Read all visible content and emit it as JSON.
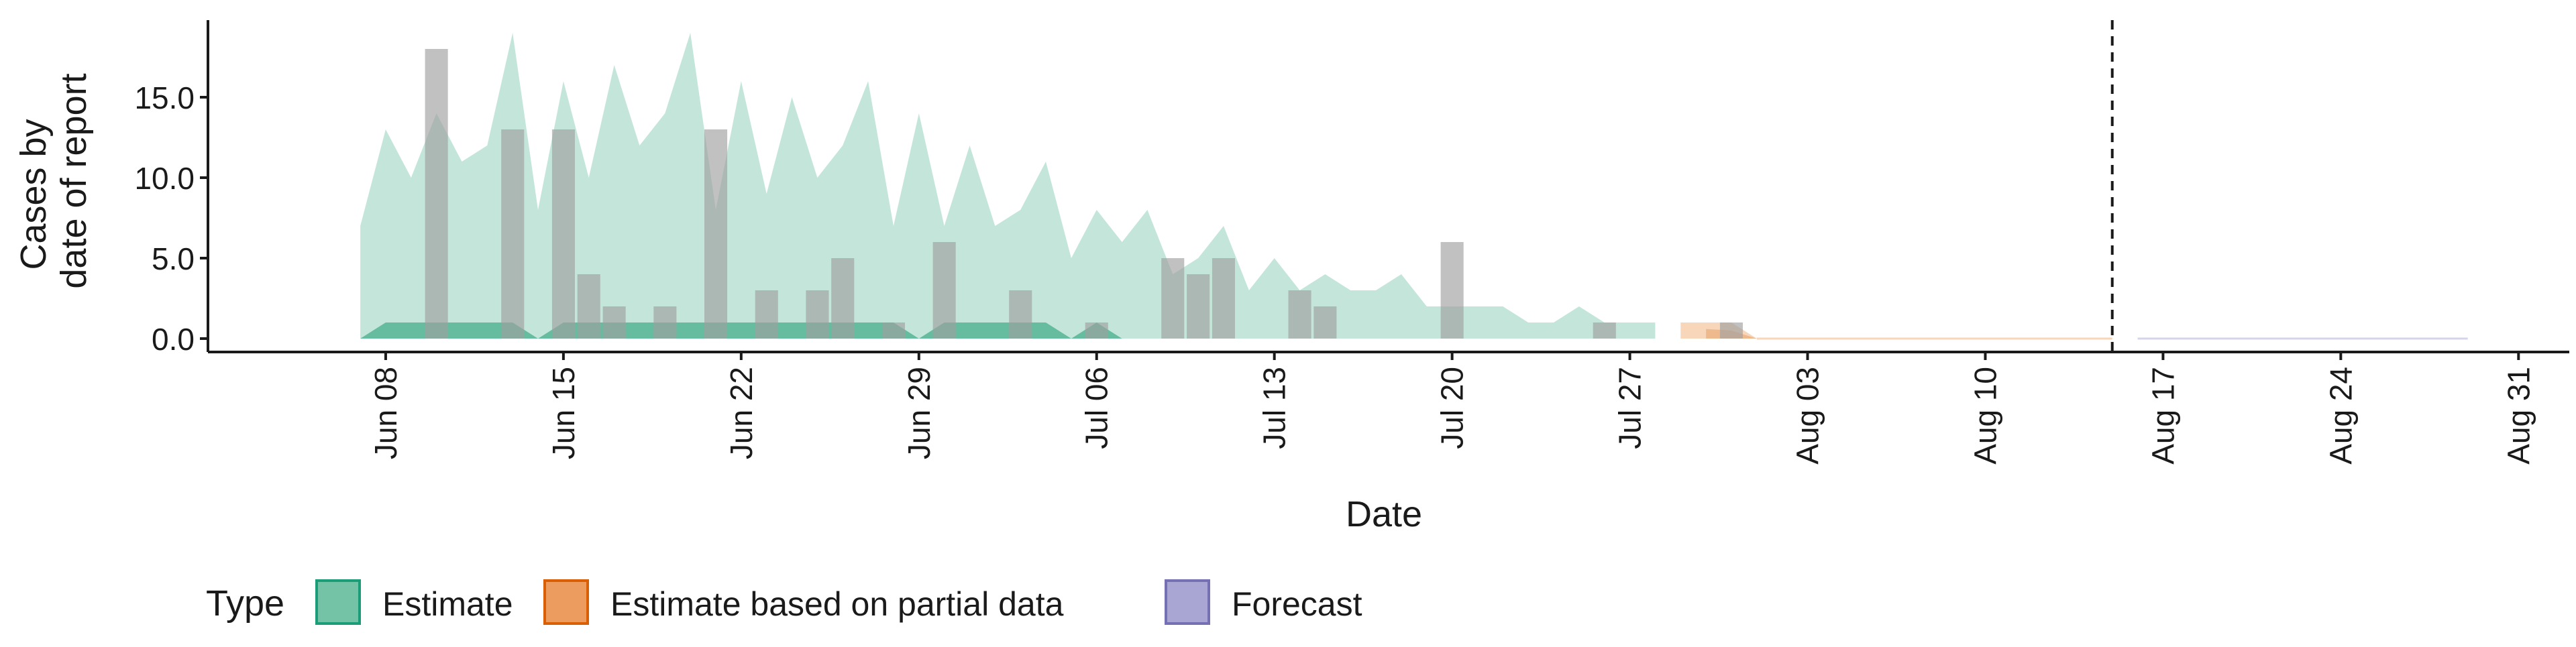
{
  "chart_data": {
    "type": "area",
    "xlabel": "Date",
    "ylabel_lines": [
      "Cases by",
      "date of report"
    ],
    "x_range": [
      "2021-06-01",
      "2021-09-02"
    ],
    "y_range": [
      0,
      20
    ],
    "y_ticks": [
      {
        "value": 0,
        "label": "0.0"
      },
      {
        "value": 5,
        "label": "5.0"
      },
      {
        "value": 10,
        "label": "10.0"
      },
      {
        "value": 15,
        "label": "15.0"
      }
    ],
    "x_ticks": [
      {
        "date": "2021-06-08",
        "label": "Jun 08"
      },
      {
        "date": "2021-06-15",
        "label": "Jun 15"
      },
      {
        "date": "2021-06-22",
        "label": "Jun 22"
      },
      {
        "date": "2021-06-29",
        "label": "Jun 29"
      },
      {
        "date": "2021-07-06",
        "label": "Jul 06"
      },
      {
        "date": "2021-07-13",
        "label": "Jul 13"
      },
      {
        "date": "2021-07-20",
        "label": "Jul 20"
      },
      {
        "date": "2021-07-27",
        "label": "Jul 27"
      },
      {
        "date": "2021-08-03",
        "label": "Aug 03"
      },
      {
        "date": "2021-08-10",
        "label": "Aug 10"
      },
      {
        "date": "2021-08-17",
        "label": "Aug 17"
      },
      {
        "date": "2021-08-24",
        "label": "Aug 24"
      },
      {
        "date": "2021-08-31",
        "label": "Aug 31"
      }
    ],
    "vline_date": "2021-08-15",
    "legend": {
      "title": "Type",
      "position": "bottom",
      "items": [
        {
          "label": "Estimate",
          "fill": "#74c3a7",
          "stroke": "#1b9e77"
        },
        {
          "label": "Estimate based on partial data",
          "fill": "#ec9c5e",
          "stroke": "#d95f02"
        },
        {
          "label": "Forecast",
          "fill": "#aaa6d3",
          "stroke": "#7570b3"
        }
      ]
    },
    "colors": {
      "estimate_outer": "#c4e6da",
      "estimate_inner": "#66bc9f",
      "partial_outer": "#f7d6ba",
      "partial_inner": "#efb98e",
      "forecast_outer": "#d6d4eb",
      "observed_bar": "#a0a0a0",
      "vline": "#1a1a1a",
      "axis": "#1a1a1a"
    },
    "series": [
      {
        "name": "Estimate",
        "outer_band": [
          [
            "2021-06-07",
            0,
            7
          ],
          [
            "2021-06-08",
            0,
            13
          ],
          [
            "2021-06-09",
            0,
            10
          ],
          [
            "2021-06-10",
            0,
            14
          ],
          [
            "2021-06-11",
            0,
            11
          ],
          [
            "2021-06-12",
            0,
            12
          ],
          [
            "2021-06-13",
            0,
            19
          ],
          [
            "2021-06-14",
            0,
            8
          ],
          [
            "2021-06-15",
            0,
            16
          ],
          [
            "2021-06-16",
            0,
            10
          ],
          [
            "2021-06-17",
            0,
            17
          ],
          [
            "2021-06-18",
            0,
            12
          ],
          [
            "2021-06-19",
            0,
            14
          ],
          [
            "2021-06-20",
            0,
            19
          ],
          [
            "2021-06-21",
            0,
            8
          ],
          [
            "2021-06-22",
            0,
            16
          ],
          [
            "2021-06-23",
            0,
            9
          ],
          [
            "2021-06-24",
            0,
            15
          ],
          [
            "2021-06-25",
            0,
            10
          ],
          [
            "2021-06-26",
            0,
            12
          ],
          [
            "2021-06-27",
            0,
            16
          ],
          [
            "2021-06-28",
            0,
            7
          ],
          [
            "2021-06-29",
            0,
            14
          ],
          [
            "2021-06-30",
            0,
            7
          ],
          [
            "2021-07-01",
            0,
            12
          ],
          [
            "2021-07-02",
            0,
            7
          ],
          [
            "2021-07-03",
            0,
            8
          ],
          [
            "2021-07-04",
            0,
            11
          ],
          [
            "2021-07-05",
            0,
            5
          ],
          [
            "2021-07-06",
            0,
            8
          ],
          [
            "2021-07-07",
            0,
            6
          ],
          [
            "2021-07-08",
            0,
            8
          ],
          [
            "2021-07-09",
            0,
            4
          ],
          [
            "2021-07-10",
            0,
            5
          ],
          [
            "2021-07-11",
            0,
            7
          ],
          [
            "2021-07-12",
            0,
            3
          ],
          [
            "2021-07-13",
            0,
            5
          ],
          [
            "2021-07-14",
            0,
            3
          ],
          [
            "2021-07-15",
            0,
            4
          ],
          [
            "2021-07-16",
            0,
            3
          ],
          [
            "2021-07-17",
            0,
            3
          ],
          [
            "2021-07-18",
            0,
            4
          ],
          [
            "2021-07-19",
            0,
            2
          ],
          [
            "2021-07-20",
            0,
            2
          ],
          [
            "2021-07-21",
            0,
            2
          ],
          [
            "2021-07-22",
            0,
            2
          ],
          [
            "2021-07-23",
            0,
            1
          ],
          [
            "2021-07-24",
            0,
            1
          ],
          [
            "2021-07-25",
            0,
            2
          ],
          [
            "2021-07-26",
            0,
            1
          ],
          [
            "2021-07-27",
            0,
            1
          ],
          [
            "2021-07-28",
            0,
            1
          ]
        ],
        "inner_band": [
          [
            "2021-06-07",
            0,
            0
          ],
          [
            "2021-06-08",
            0,
            1
          ],
          [
            "2021-06-13",
            0,
            1
          ],
          [
            "2021-06-14",
            0,
            0
          ],
          [
            "2021-06-15",
            0,
            1
          ],
          [
            "2021-06-28",
            0,
            1
          ],
          [
            "2021-06-29",
            0,
            0
          ],
          [
            "2021-06-30",
            0,
            1
          ],
          [
            "2021-07-03",
            0,
            1
          ],
          [
            "2021-07-04",
            0,
            1
          ],
          [
            "2021-07-05",
            0,
            0
          ],
          [
            "2021-07-06",
            0,
            1
          ],
          [
            "2021-07-07",
            0,
            0
          ],
          [
            "2021-07-28",
            0,
            0
          ]
        ]
      },
      {
        "name": "Estimate based on partial data",
        "outer_band": [
          [
            "2021-07-29",
            0,
            1
          ],
          [
            "2021-07-30",
            0,
            1
          ],
          [
            "2021-07-31",
            0,
            1
          ],
          [
            "2021-08-01",
            0,
            0
          ],
          [
            "2021-08-15",
            0,
            0
          ]
        ],
        "inner_band": [
          [
            "2021-07-30",
            0,
            0.6
          ],
          [
            "2021-07-31",
            0,
            0.5
          ],
          [
            "2021-08-01",
            0,
            0
          ]
        ]
      },
      {
        "name": "Forecast",
        "outer_band": [
          [
            "2021-08-16",
            0,
            0.05
          ],
          [
            "2021-08-29",
            0,
            0.05
          ]
        ],
        "inner_band": []
      }
    ],
    "observed": [
      {
        "date": "2021-06-10",
        "value": 18
      },
      {
        "date": "2021-06-13",
        "value": 13
      },
      {
        "date": "2021-06-15",
        "value": 13
      },
      {
        "date": "2021-06-16",
        "value": 4
      },
      {
        "date": "2021-06-17",
        "value": 2
      },
      {
        "date": "2021-06-19",
        "value": 2
      },
      {
        "date": "2021-06-21",
        "value": 13
      },
      {
        "date": "2021-06-23",
        "value": 3
      },
      {
        "date": "2021-06-25",
        "value": 3
      },
      {
        "date": "2021-06-26",
        "value": 5
      },
      {
        "date": "2021-06-28",
        "value": 1
      },
      {
        "date": "2021-06-30",
        "value": 6
      },
      {
        "date": "2021-07-03",
        "value": 3
      },
      {
        "date": "2021-07-06",
        "value": 1
      },
      {
        "date": "2021-07-09",
        "value": 5
      },
      {
        "date": "2021-07-10",
        "value": 4
      },
      {
        "date": "2021-07-11",
        "value": 5
      },
      {
        "date": "2021-07-14",
        "value": 3
      },
      {
        "date": "2021-07-15",
        "value": 2
      },
      {
        "date": "2021-07-20",
        "value": 6
      },
      {
        "date": "2021-07-26",
        "value": 1
      },
      {
        "date": "2021-07-31",
        "value": 1
      }
    ]
  }
}
